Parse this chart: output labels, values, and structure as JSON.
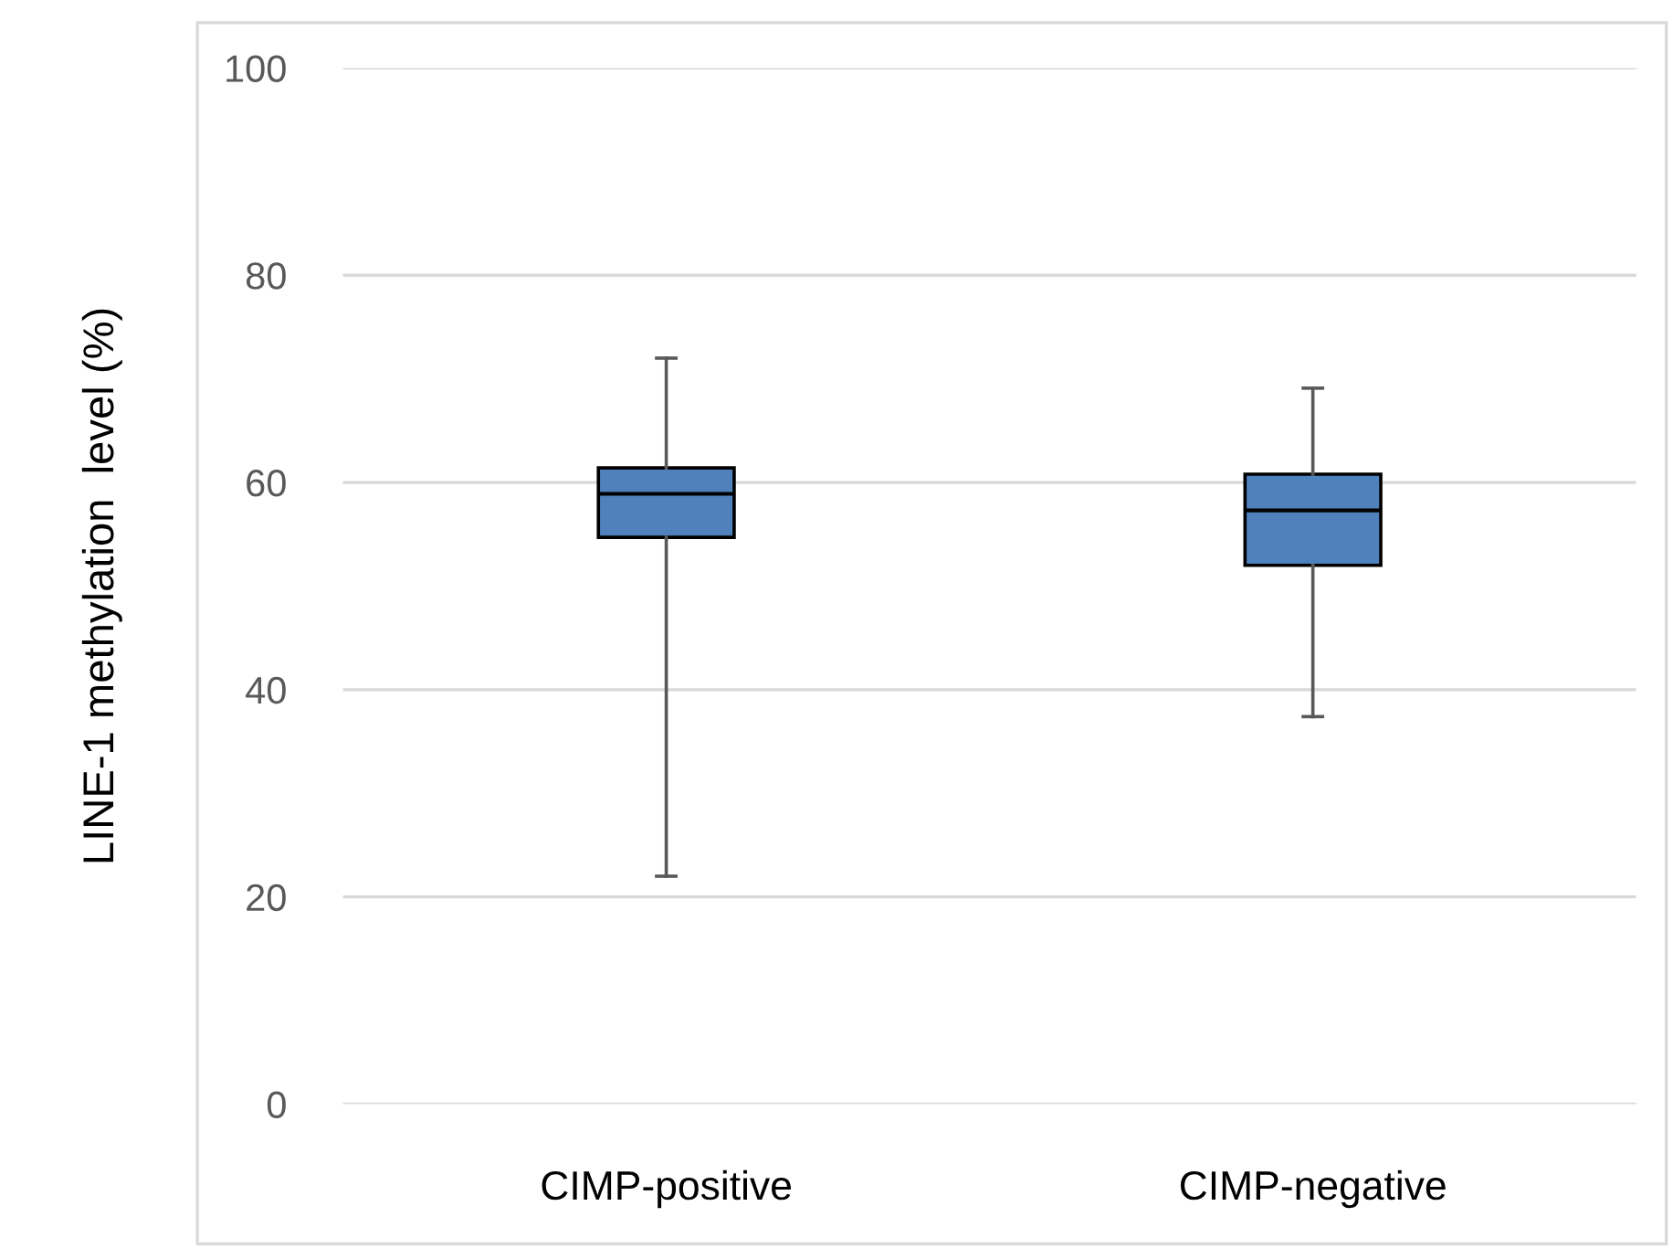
{
  "chart_data": {
    "type": "box",
    "ylabel": "LINE-1 methylation  level (%)",
    "categories": [
      "CIMP-positive",
      "CIMP-negative"
    ],
    "boxes": [
      {
        "low": 22,
        "q1": 54.7,
        "median": 58.9,
        "q3": 61.4,
        "high": 72
      },
      {
        "low": 37.4,
        "q1": 52.0,
        "median": 57.3,
        "q3": 60.8,
        "high": 69.1
      }
    ],
    "color": "#4f81bd",
    "ylim": [
      0,
      100
    ],
    "yticks": [
      0,
      20,
      40,
      60,
      80,
      100
    ],
    "grid": "y"
  }
}
